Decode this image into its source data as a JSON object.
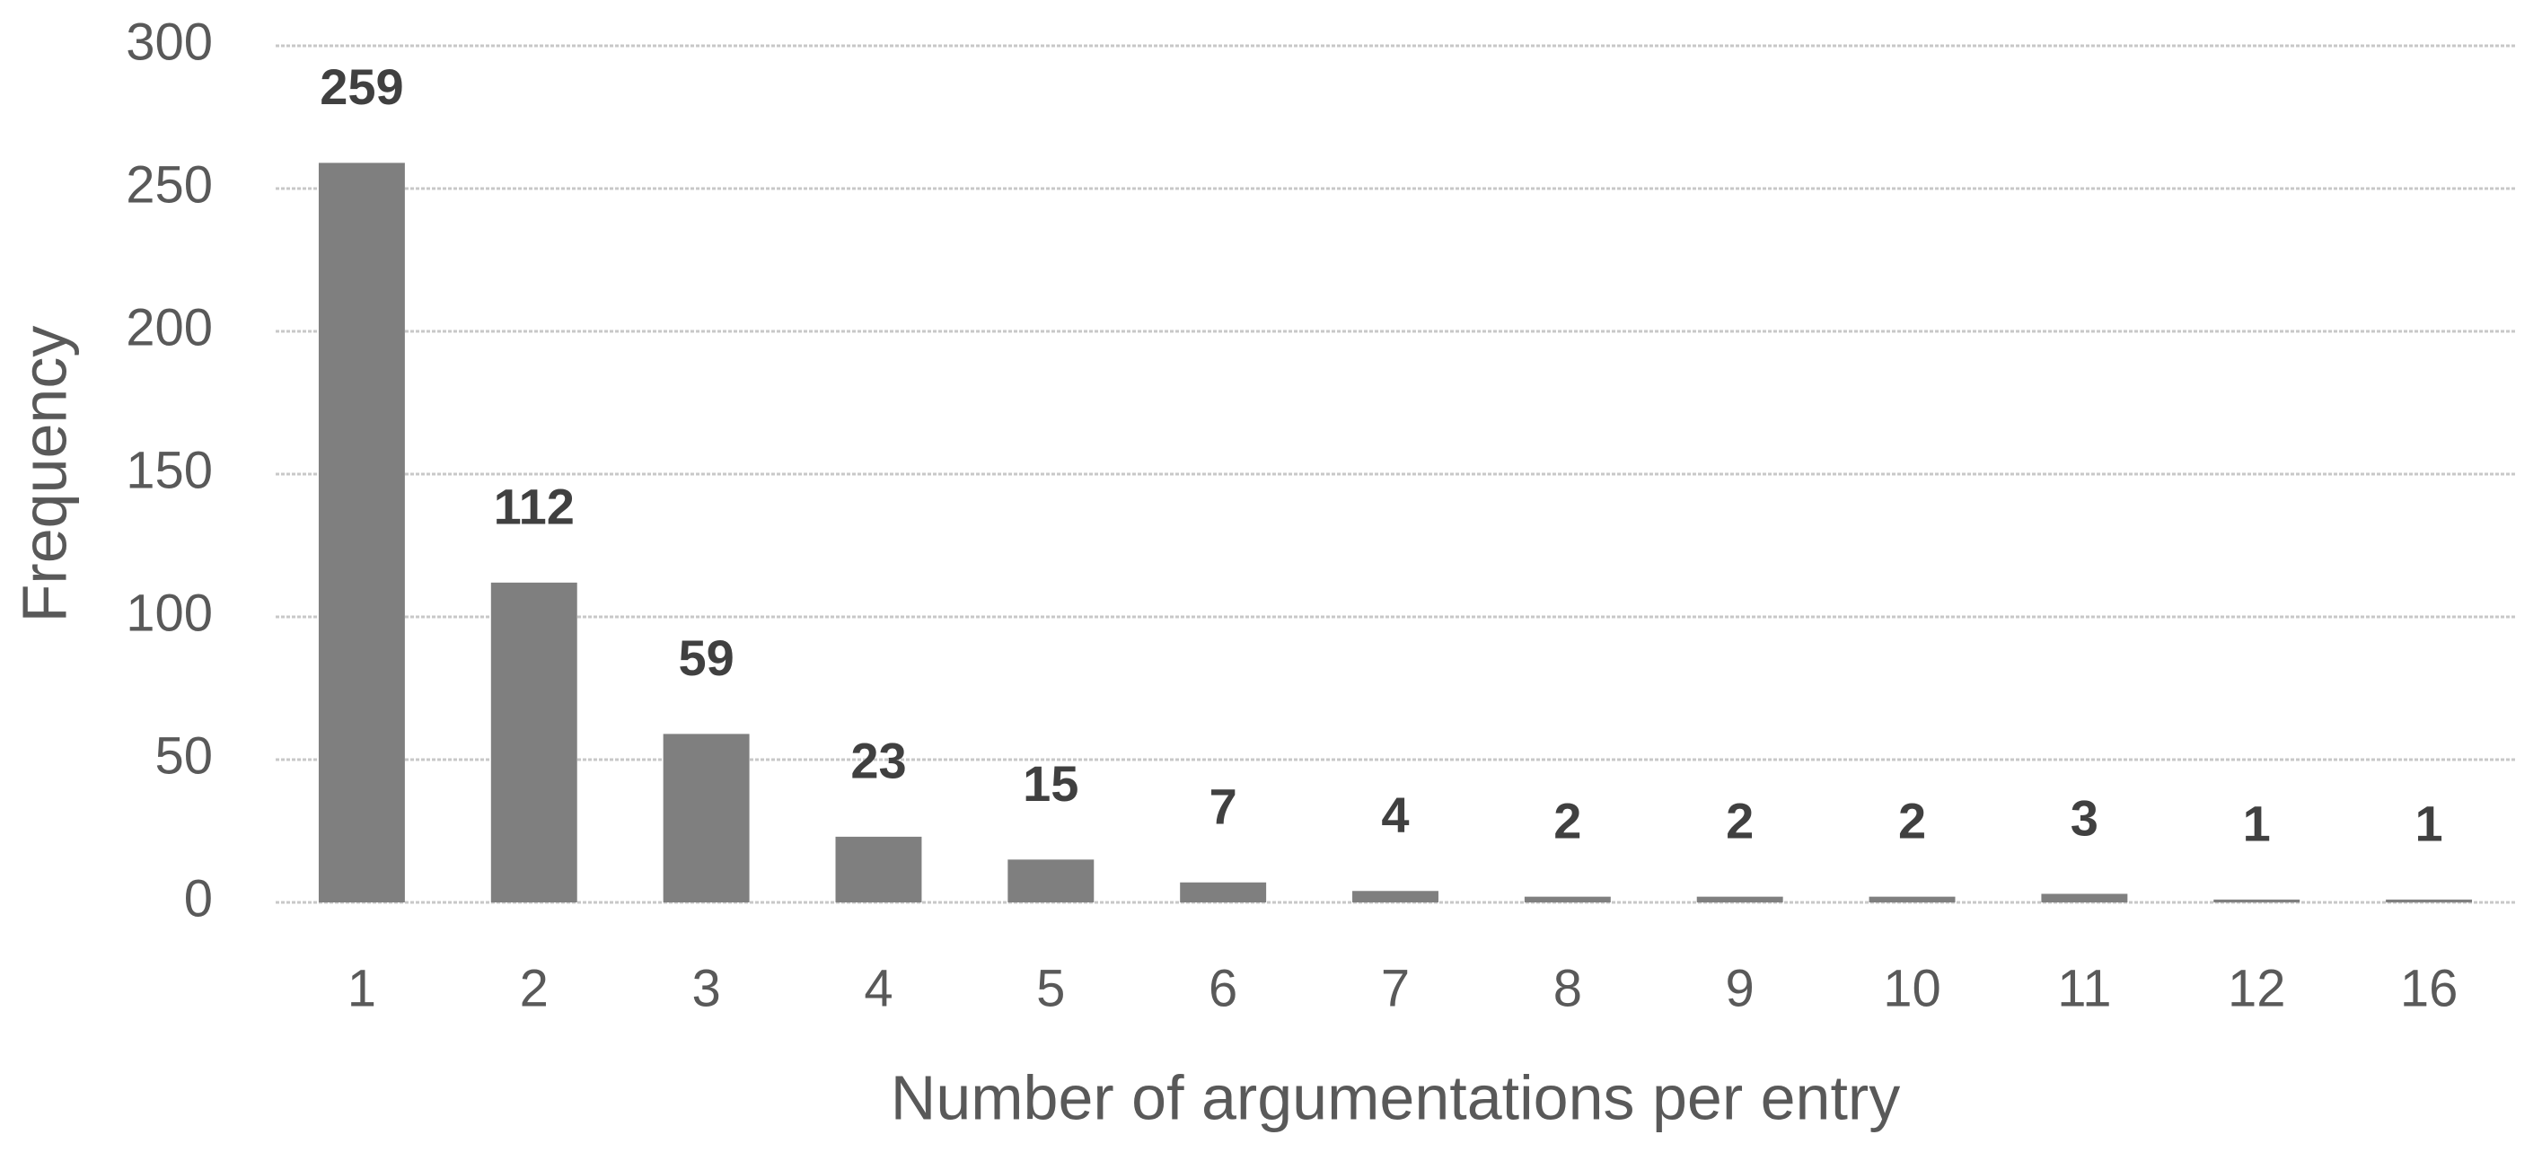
{
  "chart_data": {
    "type": "bar",
    "categories": [
      "1",
      "2",
      "3",
      "4",
      "5",
      "6",
      "7",
      "8",
      "9",
      "10",
      "11",
      "12",
      "16"
    ],
    "values": [
      259,
      112,
      59,
      23,
      15,
      7,
      4,
      2,
      2,
      2,
      3,
      1,
      1
    ],
    "color": "#7f7f7f",
    "ylim": [
      0,
      300
    ],
    "yticks": [
      0,
      50,
      100,
      150,
      200,
      250,
      300
    ],
    "grid": true,
    "xlabel": "Number of argumentations per entry",
    "ylabel": "Frequency"
  }
}
